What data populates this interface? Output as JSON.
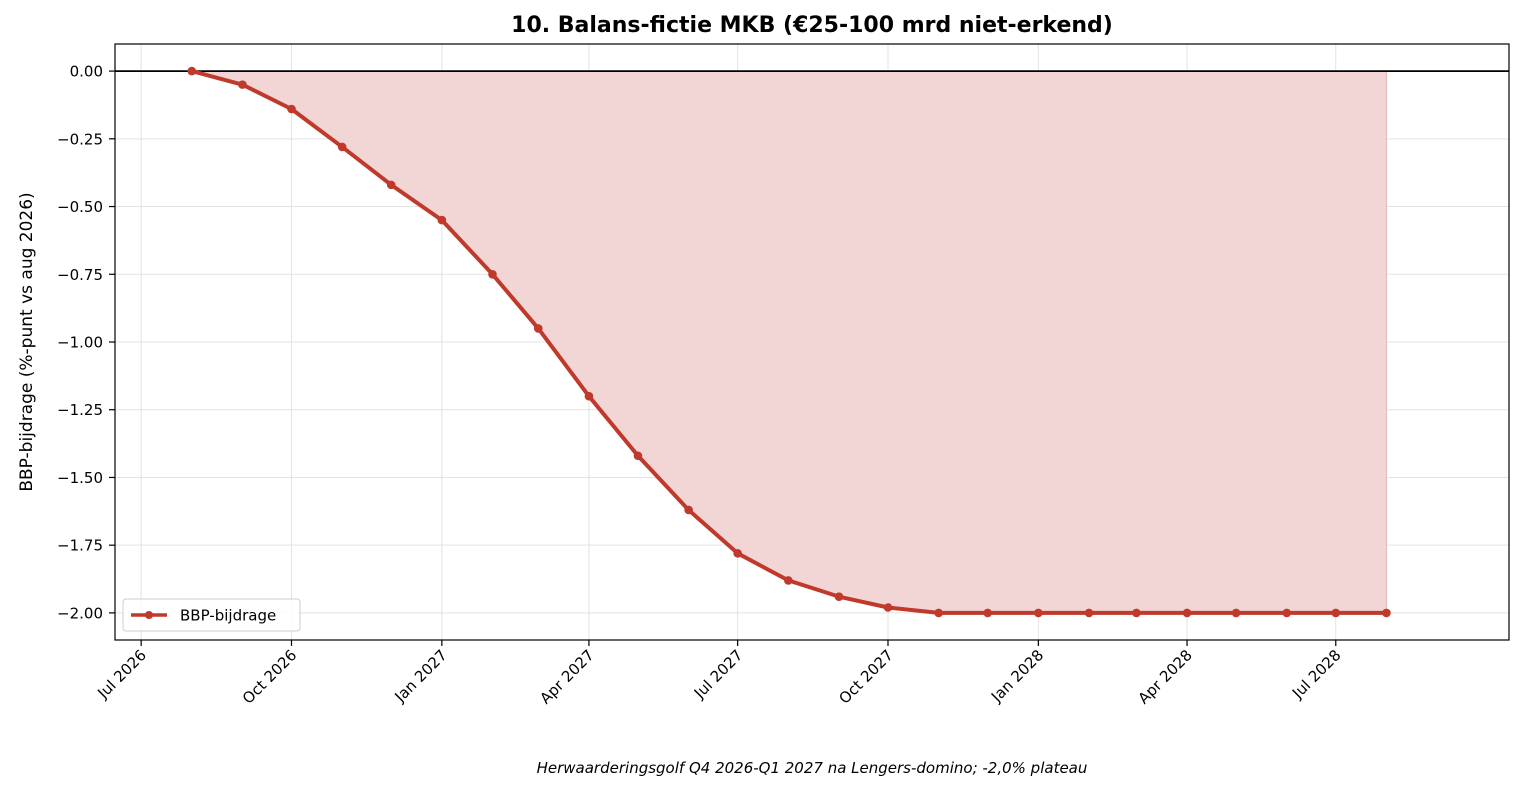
{
  "chart_data": {
    "type": "area",
    "title": "10. Balans-fictie MKB (€25-100 mrd niet-erkend)",
    "xlabel": "",
    "ylabel": "BBP-bijdrage (%-punt vs aug 2026)",
    "annotation": "Herwaarderingsgolf Q4 2026-Q1 2027 na Lengers-domino; -2,0% plateau",
    "ylim": [
      -2.1,
      0.1
    ],
    "xlim": [
      "2026-06-15",
      "2028-10-15"
    ],
    "grid": true,
    "legend_position": "lower-left",
    "y_ticks": [
      0.0,
      -0.25,
      -0.5,
      -0.75,
      -1.0,
      -1.25,
      -1.5,
      -1.75,
      -2.0
    ],
    "y_tick_labels": [
      "0.00",
      "−0.25",
      "−0.50",
      "−0.75",
      "−1.00",
      "−1.25",
      "−1.50",
      "−1.75",
      "−2.00"
    ],
    "x_ticks": [
      "2026-07-01",
      "2026-10-01",
      "2027-01-01",
      "2027-04-01",
      "2027-07-01",
      "2027-10-01",
      "2028-01-01",
      "2028-04-01",
      "2028-07-01"
    ],
    "x_tick_labels": [
      "Jul 2026",
      "Oct 2026",
      "Jan 2027",
      "Apr 2027",
      "Jul 2027",
      "Oct 2027",
      "Jan 2028",
      "Apr 2028",
      "Jul 2028"
    ],
    "series": [
      {
        "name": "BBP-bijdrage",
        "color": "#c0392b",
        "fill_color": "#f2d6d5",
        "x": [
          "2026-08-01",
          "2026-09-01",
          "2026-10-01",
          "2026-11-01",
          "2026-12-01",
          "2027-01-01",
          "2027-02-01",
          "2027-03-01",
          "2027-04-01",
          "2027-05-01",
          "2027-06-01",
          "2027-07-01",
          "2027-08-01",
          "2027-09-01",
          "2027-10-01",
          "2027-11-01",
          "2027-12-01",
          "2028-01-01",
          "2028-02-01",
          "2028-03-01",
          "2028-04-01",
          "2028-05-01",
          "2028-06-01",
          "2028-07-01",
          "2028-08-01"
        ],
        "values": [
          0.0,
          -0.05,
          -0.14,
          -0.28,
          -0.42,
          -0.55,
          -0.75,
          -0.95,
          -1.2,
          -1.42,
          -1.62,
          -1.78,
          -1.88,
          -1.94,
          -1.98,
          -2.0,
          -2.0,
          -2.0,
          -2.0,
          -2.0,
          -2.0,
          -2.0,
          -2.0,
          -2.0,
          -2.0
        ]
      }
    ]
  }
}
